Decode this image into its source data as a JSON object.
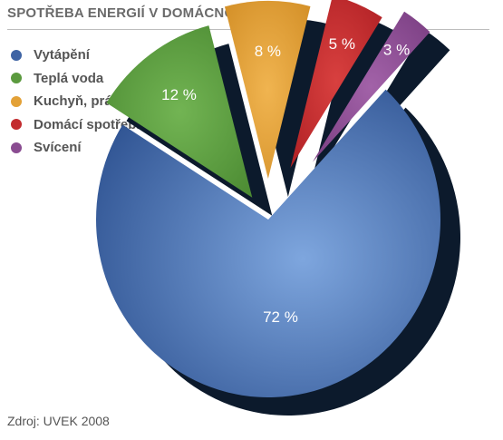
{
  "title": "SPOTŘEBA ENERGIÍ V DOMÁCNOSTECH",
  "source": "Zdroj: UVEK 2008",
  "chart_data": {
    "type": "pie",
    "categories": [
      "Vytápění",
      "Teplá voda",
      "Kuchyň, prádelna",
      "Domácí spotřebiče",
      "Svícení"
    ],
    "values": [
      72,
      12,
      8,
      5,
      3
    ],
    "labels": [
      "72 %",
      "12 %",
      "8 %",
      "5 %",
      "3 %"
    ],
    "colors": [
      "#3f64a4",
      "#5b9a3e",
      "#e3a137",
      "#c32c2f",
      "#8a4c91"
    ],
    "legend_position": "top-left",
    "exploded": true,
    "three_d": true
  }
}
